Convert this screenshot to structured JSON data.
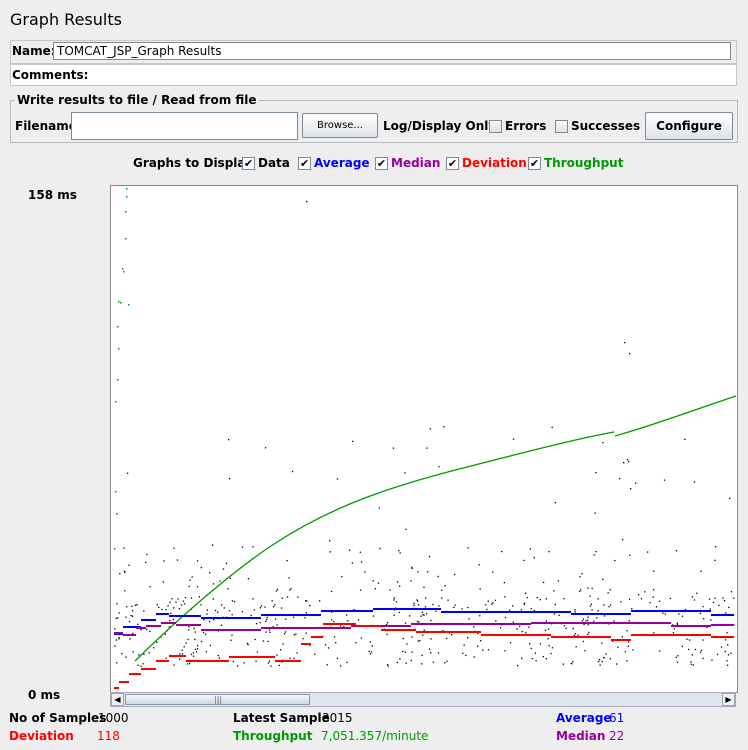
{
  "title": "Graph Results",
  "name_label": "Name:",
  "name_value": "TOMCAT_JSP_Graph Results",
  "comments_label": "Comments:",
  "write_results_legend": "Write results to file / Read from file",
  "filename_label": "Filename",
  "filename_value": "",
  "browse_label": "Browse...",
  "log_display_label": "Log/Display Only:",
  "errors_label": "Errors",
  "successes_label": "Successes",
  "configure_label": "Configure",
  "graphs_to_display": "Graphs to Display",
  "graph_toggles": [
    {
      "label": "Data",
      "color": "#000000",
      "checked": true
    },
    {
      "label": "Average",
      "color": "#0000ff",
      "checked": true
    },
    {
      "label": "Median",
      "color": "#990099",
      "checked": true
    },
    {
      "label": "Deviation",
      "color": "#ff0000",
      "checked": true
    },
    {
      "label": "Throughput",
      "color": "#009900",
      "checked": true
    }
  ],
  "y_max_label": "158  ms",
  "y_min_label": "0  ms",
  "stats": {
    "no_of_samples_label": "No of Samples",
    "no_of_samples_value": "1000",
    "latest_sample_label": "Latest Sample",
    "latest_sample_value": "3015",
    "average_label": "Average",
    "average_value": "61",
    "deviation_label": "Deviation",
    "deviation_value": "118",
    "throughput_label": "Throughput",
    "throughput_value": "7,051.357/minute",
    "median_label": "Median",
    "median_value": "22"
  },
  "chart_data": {
    "type": "scatter",
    "y_range_ms": [
      0,
      158
    ],
    "n_samples": 1000,
    "x_visible_fraction": [
      0,
      0.3
    ],
    "series": [
      {
        "name": "Data",
        "color": "#000000"
      },
      {
        "name": "Average",
        "color": "#0000ff"
      },
      {
        "name": "Median",
        "color": "#990099"
      },
      {
        "name": "Deviation",
        "color": "#ff0000"
      },
      {
        "name": "Throughput",
        "color": "#009900"
      }
    ],
    "final_values": {
      "Average": 61,
      "Median": 22,
      "Deviation": 118
    }
  },
  "colors": {
    "background": "#eeeeee",
    "plot_background": "#ffffff",
    "data": "#000000",
    "average": "#0000ff",
    "median": "#990099",
    "deviation": "#ff0000",
    "throughput": "#009900"
  }
}
